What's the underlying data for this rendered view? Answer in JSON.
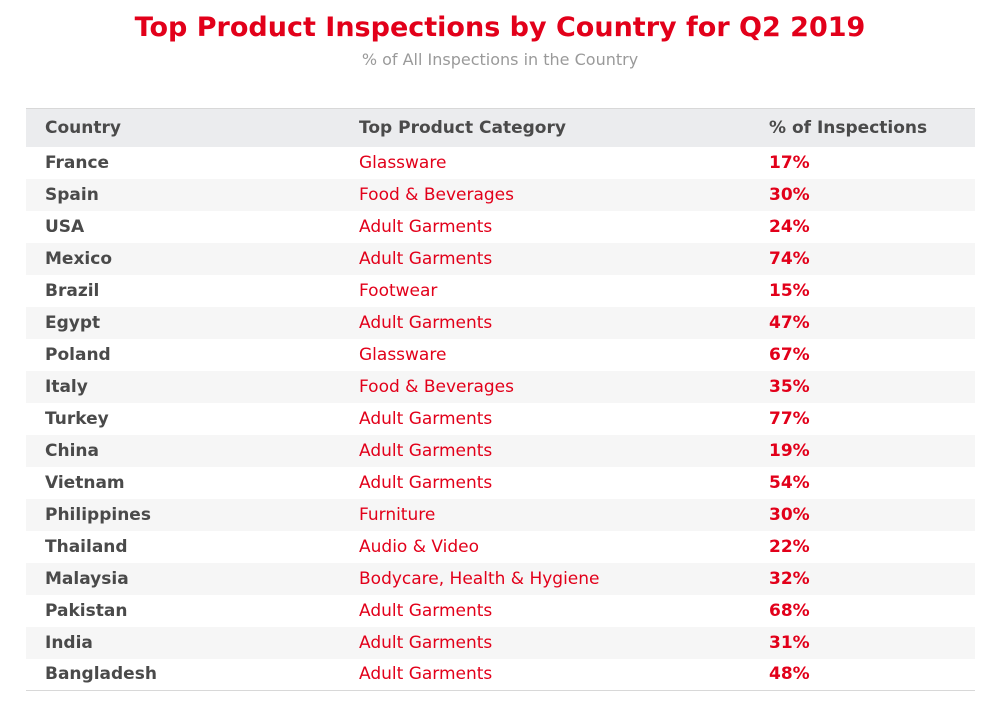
{
  "title": "Top Product Inspections by Country for Q2 2019",
  "subtitle": "% of All Inspections in the Country",
  "colors": {
    "accent": "#e2001a",
    "text": "#4a4a4a",
    "subtitle": "#9a9a9a",
    "header_bg": "#ebecee",
    "stripe_bg": "#f6f6f6"
  },
  "chart_data": {
    "type": "table",
    "title": "Top Product Inspections by Country for Q2 2019",
    "subtitle": "% of All Inspections in the Country",
    "columns": [
      "Country",
      "Top Product Category",
      "% of Inspections"
    ],
    "rows": [
      {
        "country": "France",
        "category": "Glassware",
        "percent": "17%"
      },
      {
        "country": "Spain",
        "category": "Food & Beverages",
        "percent": "30%"
      },
      {
        "country": "USA",
        "category": "Adult Garments",
        "percent": "24%"
      },
      {
        "country": "Mexico",
        "category": "Adult Garments",
        "percent": "74%"
      },
      {
        "country": "Brazil",
        "category": "Footwear",
        "percent": "15%"
      },
      {
        "country": "Egypt",
        "category": "Adult Garments",
        "percent": "47%"
      },
      {
        "country": "Poland",
        "category": "Glassware",
        "percent": "67%"
      },
      {
        "country": "Italy",
        "category": "Food & Beverages",
        "percent": "35%"
      },
      {
        "country": "Turkey",
        "category": "Adult Garments",
        "percent": "77%"
      },
      {
        "country": "China",
        "category": "Adult Garments",
        "percent": "19%"
      },
      {
        "country": "Vietnam",
        "category": "Adult Garments",
        "percent": "54%"
      },
      {
        "country": "Philippines",
        "category": "Furniture",
        "percent": "30%"
      },
      {
        "country": "Thailand",
        "category": "Audio & Video",
        "percent": "22%"
      },
      {
        "country": "Malaysia",
        "category": "Bodycare, Health & Hygiene",
        "percent": "32%"
      },
      {
        "country": "Pakistan",
        "category": "Adult Garments",
        "percent": "68%"
      },
      {
        "country": "India",
        "category": "Adult Garments",
        "percent": "31%"
      },
      {
        "country": "Bangladesh",
        "category": "Adult Garments",
        "percent": "48%"
      }
    ]
  }
}
